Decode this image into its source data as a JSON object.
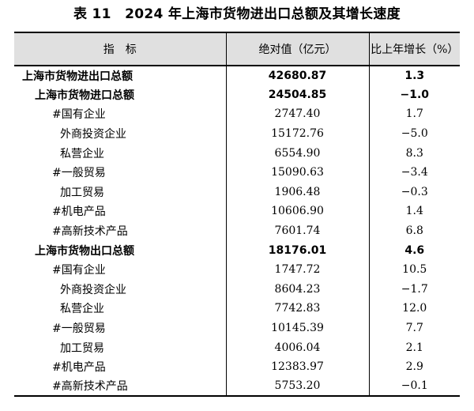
{
  "title": "表 11　2024 年上海市货物进出口总额及其增长速度",
  "headers": [
    "指　标",
    "绝对值（亿元）",
    "比上年增长（%）"
  ],
  "rows": [
    {
      "label": "上海市货物进出口总额",
      "value": "42680.87",
      "growth": "1.3"
    },
    {
      "label": "上海市货物进口总额",
      "value": "24504.85",
      "growth": "−1.0"
    },
    {
      "label": "#国有企业",
      "value": "2747.40",
      "growth": "1.7"
    },
    {
      "label": "外商投资企业",
      "value": "15172.76",
      "growth": "−5.0"
    },
    {
      "label": "私营企业",
      "value": "6554.90",
      "growth": "8.3"
    },
    {
      "label": "#一般贸易",
      "value": "15090.63",
      "growth": "−3.4"
    },
    {
      "label": "加工贸易",
      "value": "1906.48",
      "growth": "−0.3"
    },
    {
      "label": "#机电产品",
      "value": "10606.90",
      "growth": "1.4"
    },
    {
      "label": "#高新技术产品",
      "value": "7601.74",
      "growth": "6.8"
    },
    {
      "label": "上海市货物出口总额",
      "value": "18176.01",
      "growth": "4.6"
    },
    {
      "label": "#国有企业",
      "value": "1747.72",
      "growth": "10.5"
    },
    {
      "label": "外商投资企业",
      "value": "8604.23",
      "growth": "−1.7"
    },
    {
      "label": "私营企业",
      "value": "7742.83",
      "growth": "12.0"
    },
    {
      "label": "#一般贸易",
      "value": "10145.39",
      "growth": "7.7"
    },
    {
      "label": "加工贸易",
      "value": "4006.04",
      "growth": "2.1"
    },
    {
      "label": "#机电产品",
      "value": "12383.97",
      "growth": "2.9"
    },
    {
      "label": "#高新技术产品",
      "value": "5753.20",
      "growth": "−0.1"
    }
  ]
}
